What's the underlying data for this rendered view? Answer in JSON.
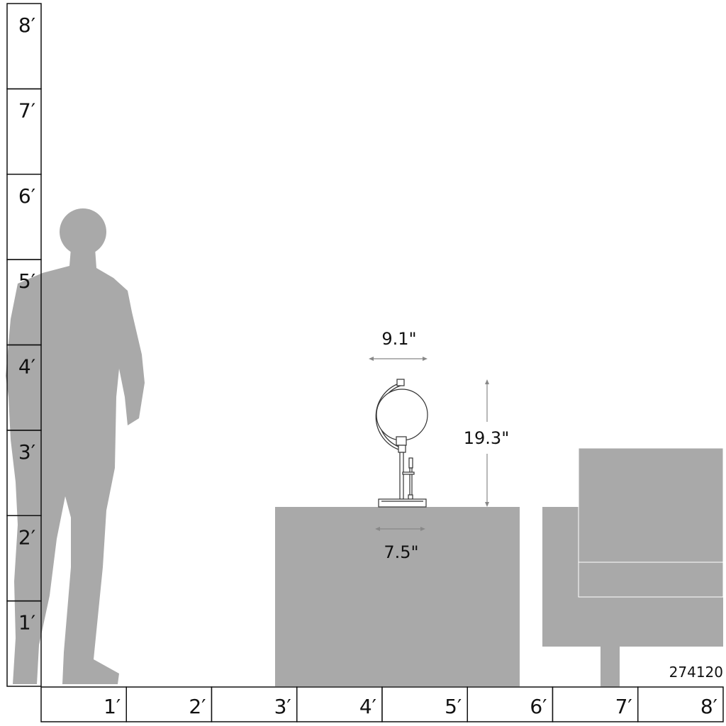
{
  "colors": {
    "silhouette": "#a9a9a9",
    "ruler_line": "#111111",
    "dimension_line": "#888888",
    "lamp_line": "#333333"
  },
  "vertical_ruler": {
    "labels": [
      "8′",
      "7′",
      "6′",
      "5′",
      "4′",
      "3′",
      "2′",
      "1′"
    ]
  },
  "horizontal_ruler": {
    "labels": [
      "1′",
      "2′",
      "3′",
      "4′",
      "5′",
      "6′",
      "7′",
      "8′"
    ]
  },
  "dimensions": {
    "width": "9.1\"",
    "height": "19.3\"",
    "base": "7.5\""
  },
  "product_code": "274120",
  "figures": {
    "person": "person-silhouette",
    "table": "side-table",
    "chair": "armchair",
    "lamp": "globe-table-lamp"
  }
}
